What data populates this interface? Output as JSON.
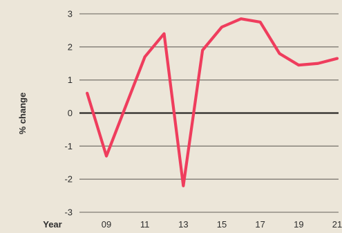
{
  "chart_data": {
    "type": "line",
    "xlabel": "Year",
    "ylabel": "% change",
    "x": [
      2008,
      2009,
      2010,
      2011,
      2012,
      2013,
      2014,
      2015,
      2016,
      2017,
      2018,
      2019,
      2020,
      2021
    ],
    "series": [
      {
        "values": [
          0.6,
          -1.3,
          0.2,
          1.7,
          2.4,
          -2.2,
          1.9,
          2.6,
          2.85,
          2.75,
          1.8,
          1.45,
          1.5,
          1.65
        ]
      }
    ],
    "xticks": [
      {
        "value": 2009,
        "label": "09"
      },
      {
        "value": 2011,
        "label": "11"
      },
      {
        "value": 2013,
        "label": "13"
      },
      {
        "value": 2015,
        "label": "15"
      },
      {
        "value": 2017,
        "label": "17"
      },
      {
        "value": 2019,
        "label": "19"
      },
      {
        "value": 2021,
        "label": "21"
      }
    ],
    "yticks": [
      {
        "value": 3,
        "label": "3"
      },
      {
        "value": 2,
        "label": "2"
      },
      {
        "value": 1,
        "label": "1"
      },
      {
        "value": 0,
        "label": "0"
      },
      {
        "value": -1,
        "label": "-1"
      },
      {
        "value": -2,
        "label": "-2"
      },
      {
        "value": -3,
        "label": "-3"
      }
    ],
    "ylim": [
      -3,
      3
    ],
    "xlim": [
      2008,
      2021
    ],
    "grid": true,
    "colors": {
      "line": "#ef3d5d",
      "grid": "#7f7b73",
      "zero_line": "#2c2a27",
      "background": "#ece6d9",
      "text": "#2d2d2d"
    }
  }
}
